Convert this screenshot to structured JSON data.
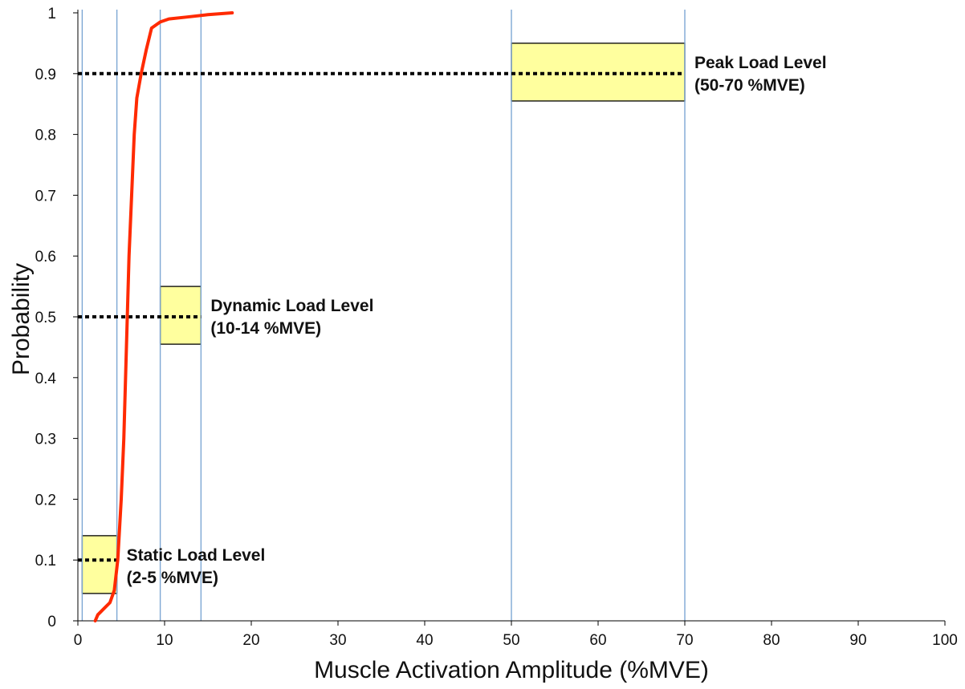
{
  "chart_data": {
    "type": "line",
    "title": "",
    "xlabel": "Muscle Activation Amplitude (%MVE)",
    "ylabel": "Probability",
    "xlim": [
      0,
      100
    ],
    "ylim": [
      0,
      1
    ],
    "x_ticks": [
      0,
      10,
      20,
      30,
      40,
      50,
      60,
      70,
      80,
      90,
      100
    ],
    "x_tick_labels": [
      "0",
      "10",
      "20",
      "30",
      "40",
      "50",
      "60",
      "70",
      "80",
      "90",
      "100"
    ],
    "y_ticks": [
      0,
      0.1,
      0.2,
      0.3,
      0.4,
      0.5,
      0.6,
      0.7,
      0.8,
      0.9,
      1
    ],
    "y_tick_labels": [
      "0",
      "0.1",
      "0.2",
      "0.3",
      "0.4",
      "0.5",
      "0.6",
      "0.7",
      "0.8",
      "0.9",
      "1"
    ],
    "grid": false,
    "series": [
      {
        "color": "#ff2a00",
        "points": [
          [
            2.0,
            0.0
          ],
          [
            2.3,
            0.01
          ],
          [
            3.0,
            0.02
          ],
          [
            3.7,
            0.03
          ],
          [
            4.2,
            0.05
          ],
          [
            4.6,
            0.1
          ],
          [
            5.0,
            0.2
          ],
          [
            5.3,
            0.3
          ],
          [
            5.5,
            0.4
          ],
          [
            5.7,
            0.5
          ],
          [
            5.9,
            0.6
          ],
          [
            6.2,
            0.7
          ],
          [
            6.5,
            0.8
          ],
          [
            6.8,
            0.86
          ],
          [
            7.3,
            0.9
          ],
          [
            7.9,
            0.94
          ],
          [
            8.5,
            0.975
          ],
          [
            9.5,
            0.985
          ],
          [
            10.5,
            0.99
          ],
          [
            12.5,
            0.993
          ],
          [
            15.0,
            0.997
          ],
          [
            17.8,
            1.0
          ]
        ]
      }
    ],
    "vertical_lines": [
      0.5,
      4.5,
      9.5,
      14.2,
      50,
      70
    ],
    "vertical_line_color": "#7da7d4",
    "regions": [
      {
        "label_line1": "Static Load Level",
        "label_line2": "(2-5 %MVE)",
        "x_range": [
          0.5,
          4.5
        ],
        "y_range": [
          0.045,
          0.14
        ],
        "reference_y": 0.1
      },
      {
        "label_line1": "Dynamic Load Level",
        "label_line2": "(10-14 %MVE)",
        "x_range": [
          9.5,
          14.2
        ],
        "y_range": [
          0.455,
          0.55
        ],
        "reference_y": 0.5
      },
      {
        "label_line1": "Peak Load Level",
        "label_line2": "(50-70 %MVE)",
        "x_range": [
          50,
          70
        ],
        "y_range": [
          0.855,
          0.95
        ],
        "reference_y": 0.9
      }
    ],
    "region_fill": "#ffff9e"
  }
}
